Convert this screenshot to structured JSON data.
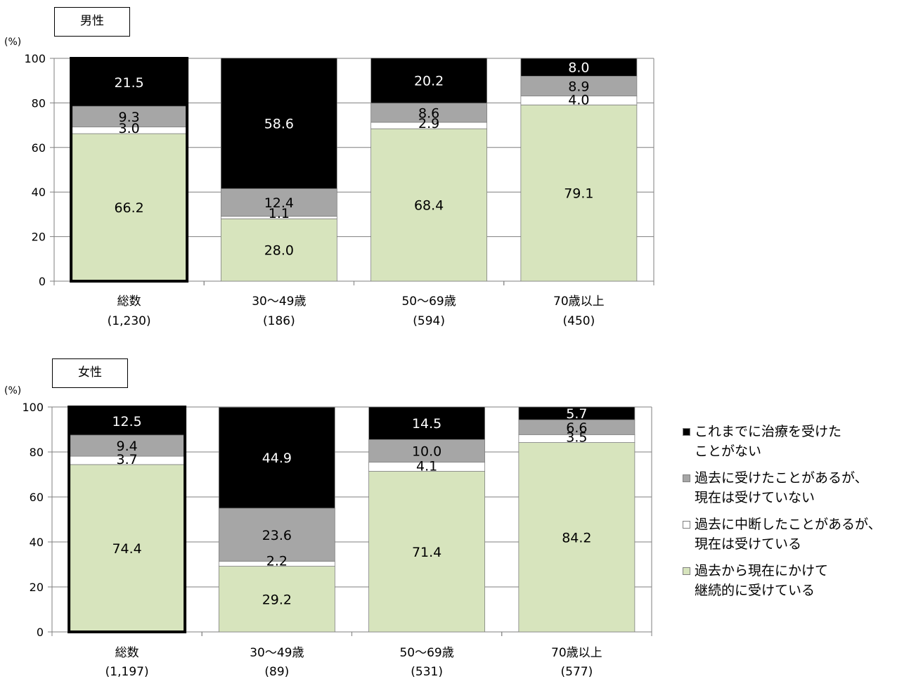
{
  "chart_data": [
    {
      "type": "bar",
      "stacked": true,
      "title": "男性",
      "unit": "(%)",
      "ylim": [
        0,
        100
      ],
      "yticks": [
        0,
        20,
        40,
        60,
        80,
        100
      ],
      "grid": true,
      "categories": [
        "総数",
        "30〜49歳",
        "50〜69歳",
        "70歳以上"
      ],
      "category_counts": [
        "(1,230)",
        "(186)",
        "(594)",
        "(450)"
      ],
      "highlight_category": 0,
      "series": [
        {
          "name": "過去から現在にかけて継続的に受けている",
          "values": [
            66.2,
            28.0,
            68.4,
            79.1
          ]
        },
        {
          "name": "過去に中断したことがあるが、現在は受けている",
          "values": [
            3.0,
            1.1,
            2.9,
            4.0
          ]
        },
        {
          "name": "過去に受けたことがあるが、現在は受けていない",
          "values": [
            9.3,
            12.4,
            8.6,
            8.9
          ]
        },
        {
          "name": "これまでに治療を受けたことがない",
          "values": [
            21.5,
            58.6,
            20.2,
            8.0
          ]
        }
      ]
    },
    {
      "type": "bar",
      "stacked": true,
      "title": "女性",
      "unit": "(%)",
      "ylim": [
        0,
        100
      ],
      "yticks": [
        0,
        20,
        40,
        60,
        80,
        100
      ],
      "grid": true,
      "categories": [
        "総数",
        "30〜49歳",
        "50〜69歳",
        "70歳以上"
      ],
      "category_counts": [
        "(1,197)",
        "(89)",
        "(531)",
        "(577)"
      ],
      "highlight_category": 0,
      "series": [
        {
          "name": "過去から現在にかけて継続的に受けている",
          "values": [
            74.4,
            29.2,
            71.4,
            84.2
          ]
        },
        {
          "name": "過去に中断したことがあるが、現在は受けている",
          "values": [
            3.7,
            2.2,
            4.1,
            3.5
          ]
        },
        {
          "name": "過去に受けたことがあるが、現在は受けていない",
          "values": [
            9.4,
            23.6,
            10.0,
            6.6
          ]
        },
        {
          "name": "これまでに治療を受けたことがない",
          "values": [
            12.5,
            44.9,
            14.5,
            5.7
          ]
        }
      ]
    }
  ],
  "colors": {
    "continuous": "#d7e4bd",
    "interrupted": "#ffffff",
    "past": "#a6a6a6",
    "never": "#000000",
    "grid": "#7f7f7f"
  },
  "legend": {
    "placement": "right",
    "items": [
      {
        "line1": "これまでに治療を受けた",
        "line2": "ことがない",
        "color": "#000000"
      },
      {
        "line1": "過去に受けたことがあるが、",
        "line2": "現在は受けていない",
        "color": "#a6a6a6"
      },
      {
        "line1": "過去に中断したことがあるが、",
        "line2": "現在は受けている",
        "color": "#ffffff"
      },
      {
        "line1": "過去から現在にかけて",
        "line2": "継続的に受けている",
        "color": "#d7e4bd"
      }
    ]
  }
}
